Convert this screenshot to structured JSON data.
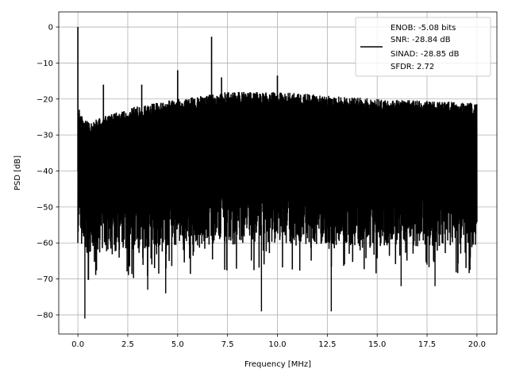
{
  "chart_data": {
    "type": "line",
    "title": "",
    "xlabel": "Frequency [MHz]",
    "ylabel": "PSD [dB]",
    "xlim": [
      -0.96,
      21.0
    ],
    "ylim": [
      -85.3,
      4.2
    ],
    "grid": true,
    "x_ticks": [
      0.0,
      2.5,
      5.0,
      7.5,
      10.0,
      12.5,
      15.0,
      17.5,
      20.0
    ],
    "x_tick_labels": [
      "0.0",
      "2.5",
      "5.0",
      "7.5",
      "10.0",
      "12.5",
      "15.0",
      "17.5",
      "20.0"
    ],
    "y_ticks": [
      0,
      -10,
      -20,
      -30,
      -40,
      -50,
      -60,
      -70,
      -80
    ],
    "y_tick_labels": [
      "0",
      "−10",
      "−20",
      "−30",
      "−40",
      "−50",
      "−60",
      "−70",
      "−80"
    ],
    "line_color": "#000000",
    "series": [
      {
        "x_range": [
          0.0,
          20.0
        ],
        "upper_envelope": {
          "x": [
            0,
            0.3,
            0.5,
            1,
            2.5,
            5,
            7.5,
            10,
            12.5,
            15,
            17.5,
            20
          ],
          "y": [
            -22,
            -25,
            -26,
            -25.5,
            -22.5,
            -20,
            -18,
            -18,
            -19,
            -20,
            -20.5,
            -21
          ]
        },
        "lower_envelope": {
          "x": [
            0,
            0.5,
            2.5,
            5,
            10,
            15,
            20
          ],
          "y": [
            -60,
            -63,
            -62,
            -61,
            -60,
            -61,
            -61
          ]
        },
        "spikes": {
          "x": [
            0.0,
            1.28,
            3.2,
            5.0,
            6.7,
            7.2,
            10.0
          ],
          "y": [
            0,
            -16,
            -16,
            -12,
            -2.7,
            -14,
            -13.5
          ]
        },
        "dips": {
          "x": [
            0.35,
            3.5,
            4.4,
            9.2,
            12.7,
            16.2,
            17.9
          ],
          "y": [
            -81,
            -73,
            -74,
            -79,
            -79,
            -72,
            -72
          ]
        }
      }
    ],
    "legend": {
      "placement": "top-right",
      "entries": [
        "ENOB: -5.08 bits",
        "SNR: -28.84 dB",
        "SINAD: -28.85 dB",
        "SFDR: 2.72"
      ]
    }
  }
}
